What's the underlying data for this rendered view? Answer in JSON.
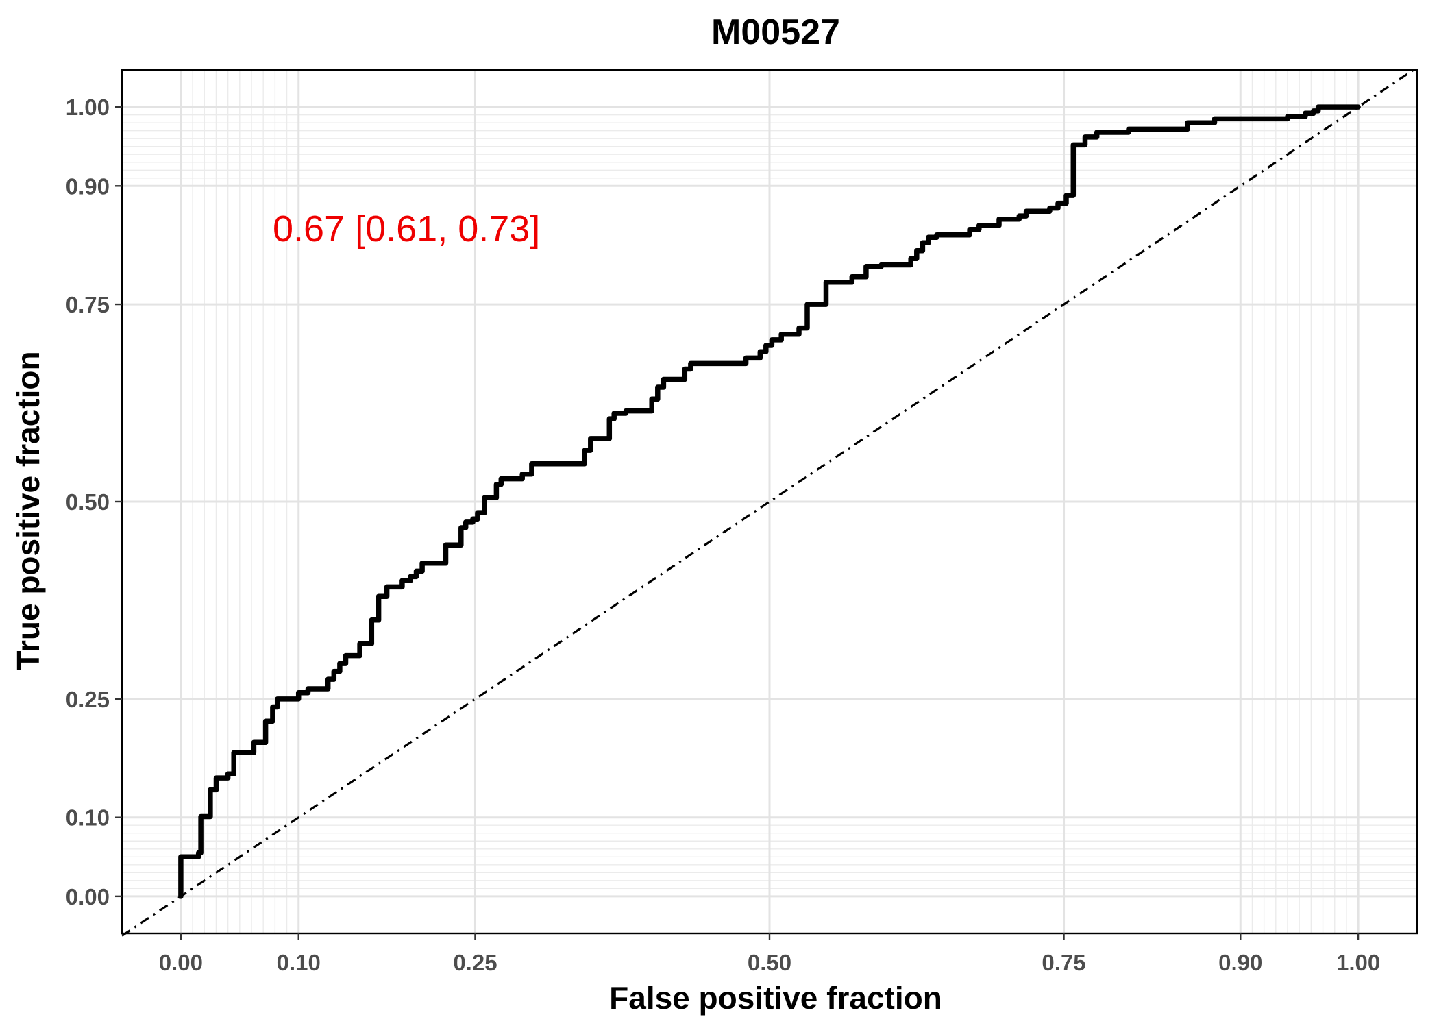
{
  "chart_data": {
    "type": "line",
    "title": "M00527",
    "xlabel": "False positive fraction",
    "ylabel": "True positive fraction",
    "xlim": [
      -0.05,
      1.05
    ],
    "ylim": [
      -0.047,
      1.047
    ],
    "x_ticks": [
      0.0,
      0.1,
      0.25,
      0.5,
      0.75,
      0.9,
      1.0
    ],
    "y_ticks": [
      0.0,
      0.1,
      0.25,
      0.5,
      0.75,
      0.9,
      1.0
    ],
    "x_tick_labels": [
      "0.00",
      "0.10",
      "0.25",
      "0.50",
      "0.75",
      "0.90",
      "1.00"
    ],
    "y_tick_labels": [
      "0.00",
      "0.10",
      "0.25",
      "0.50",
      "0.75",
      "0.90",
      "1.00"
    ],
    "x_minor_grid": [
      0.01,
      0.02,
      0.03,
      0.04,
      0.05,
      0.06,
      0.07,
      0.08,
      0.09,
      0.91,
      0.92,
      0.93,
      0.94,
      0.95,
      0.96,
      0.97,
      0.98,
      0.99
    ],
    "y_minor_grid": [
      0.01,
      0.02,
      0.03,
      0.04,
      0.05,
      0.06,
      0.07,
      0.08,
      0.09,
      0.91,
      0.92,
      0.93,
      0.94,
      0.95,
      0.96,
      0.97,
      0.98,
      0.99
    ],
    "grid": true,
    "annotation": {
      "text": "0.67 [0.61, 0.73]",
      "color": "#ee0000"
    },
    "reference_line": {
      "style": "dash-dot",
      "from": [
        -0.05,
        -0.05
      ],
      "to": [
        1.05,
        1.05
      ]
    },
    "series": [
      {
        "color": "#000000",
        "points": [
          [
            0.0,
            0.0
          ],
          [
            0.0,
            0.05
          ],
          [
            0.015,
            0.05
          ],
          [
            0.015,
            0.055
          ],
          [
            0.017,
            0.055
          ],
          [
            0.017,
            0.101
          ],
          [
            0.025,
            0.101
          ],
          [
            0.025,
            0.135
          ],
          [
            0.03,
            0.135
          ],
          [
            0.03,
            0.15
          ],
          [
            0.04,
            0.15
          ],
          [
            0.04,
            0.155
          ],
          [
            0.045,
            0.155
          ],
          [
            0.045,
            0.182
          ],
          [
            0.062,
            0.182
          ],
          [
            0.062,
            0.195
          ],
          [
            0.072,
            0.195
          ],
          [
            0.072,
            0.222
          ],
          [
            0.078,
            0.222
          ],
          [
            0.078,
            0.24
          ],
          [
            0.082,
            0.24
          ],
          [
            0.082,
            0.25
          ],
          [
            0.1,
            0.25
          ],
          [
            0.1,
            0.258
          ],
          [
            0.108,
            0.258
          ],
          [
            0.108,
            0.263
          ],
          [
            0.125,
            0.263
          ],
          [
            0.125,
            0.275
          ],
          [
            0.13,
            0.275
          ],
          [
            0.13,
            0.285
          ],
          [
            0.135,
            0.285
          ],
          [
            0.135,
            0.295
          ],
          [
            0.14,
            0.295
          ],
          [
            0.14,
            0.305
          ],
          [
            0.152,
            0.305
          ],
          [
            0.152,
            0.32
          ],
          [
            0.162,
            0.32
          ],
          [
            0.162,
            0.35
          ],
          [
            0.168,
            0.35
          ],
          [
            0.168,
            0.38
          ],
          [
            0.175,
            0.38
          ],
          [
            0.175,
            0.392
          ],
          [
            0.188,
            0.392
          ],
          [
            0.188,
            0.4
          ],
          [
            0.195,
            0.4
          ],
          [
            0.195,
            0.405
          ],
          [
            0.2,
            0.405
          ],
          [
            0.2,
            0.412
          ],
          [
            0.205,
            0.412
          ],
          [
            0.205,
            0.422
          ],
          [
            0.225,
            0.422
          ],
          [
            0.225,
            0.445
          ],
          [
            0.238,
            0.445
          ],
          [
            0.238,
            0.467
          ],
          [
            0.242,
            0.467
          ],
          [
            0.242,
            0.474
          ],
          [
            0.248,
            0.474
          ],
          [
            0.248,
            0.478
          ],
          [
            0.252,
            0.478
          ],
          [
            0.252,
            0.486
          ],
          [
            0.258,
            0.486
          ],
          [
            0.258,
            0.505
          ],
          [
            0.268,
            0.505
          ],
          [
            0.268,
            0.522
          ],
          [
            0.272,
            0.522
          ],
          [
            0.272,
            0.529
          ],
          [
            0.29,
            0.529
          ],
          [
            0.29,
            0.535
          ],
          [
            0.298,
            0.535
          ],
          [
            0.298,
            0.548
          ],
          [
            0.343,
            0.548
          ],
          [
            0.343,
            0.565
          ],
          [
            0.348,
            0.565
          ],
          [
            0.348,
            0.58
          ],
          [
            0.364,
            0.58
          ],
          [
            0.364,
            0.605
          ],
          [
            0.368,
            0.605
          ],
          [
            0.368,
            0.612
          ],
          [
            0.378,
            0.612
          ],
          [
            0.378,
            0.615
          ],
          [
            0.4,
            0.615
          ],
          [
            0.4,
            0.63
          ],
          [
            0.405,
            0.63
          ],
          [
            0.405,
            0.645
          ],
          [
            0.41,
            0.645
          ],
          [
            0.41,
            0.655
          ],
          [
            0.428,
            0.655
          ],
          [
            0.428,
            0.668
          ],
          [
            0.433,
            0.668
          ],
          [
            0.433,
            0.675
          ],
          [
            0.48,
            0.675
          ],
          [
            0.48,
            0.682
          ],
          [
            0.492,
            0.682
          ],
          [
            0.492,
            0.69
          ],
          [
            0.497,
            0.69
          ],
          [
            0.497,
            0.698
          ],
          [
            0.502,
            0.698
          ],
          [
            0.502,
            0.705
          ],
          [
            0.51,
            0.705
          ],
          [
            0.51,
            0.712
          ],
          [
            0.525,
            0.712
          ],
          [
            0.525,
            0.72
          ],
          [
            0.532,
            0.72
          ],
          [
            0.532,
            0.75
          ],
          [
            0.548,
            0.75
          ],
          [
            0.548,
            0.778
          ],
          [
            0.57,
            0.778
          ],
          [
            0.57,
            0.785
          ],
          [
            0.582,
            0.785
          ],
          [
            0.582,
            0.798
          ],
          [
            0.595,
            0.798
          ],
          [
            0.595,
            0.8
          ],
          [
            0.62,
            0.8
          ],
          [
            0.62,
            0.808
          ],
          [
            0.625,
            0.808
          ],
          [
            0.625,
            0.818
          ],
          [
            0.63,
            0.818
          ],
          [
            0.63,
            0.828
          ],
          [
            0.635,
            0.828
          ],
          [
            0.635,
            0.835
          ],
          [
            0.642,
            0.835
          ],
          [
            0.642,
            0.838
          ],
          [
            0.67,
            0.838
          ],
          [
            0.67,
            0.845
          ],
          [
            0.678,
            0.845
          ],
          [
            0.678,
            0.85
          ],
          [
            0.695,
            0.85
          ],
          [
            0.695,
            0.858
          ],
          [
            0.712,
            0.858
          ],
          [
            0.712,
            0.862
          ],
          [
            0.718,
            0.862
          ],
          [
            0.718,
            0.868
          ],
          [
            0.738,
            0.868
          ],
          [
            0.738,
            0.872
          ],
          [
            0.745,
            0.872
          ],
          [
            0.745,
            0.878
          ],
          [
            0.752,
            0.878
          ],
          [
            0.752,
            0.888
          ],
          [
            0.758,
            0.888
          ],
          [
            0.758,
            0.952
          ],
          [
            0.768,
            0.952
          ],
          [
            0.768,
            0.962
          ],
          [
            0.778,
            0.962
          ],
          [
            0.778,
            0.968
          ],
          [
            0.805,
            0.968
          ],
          [
            0.805,
            0.972
          ],
          [
            0.855,
            0.972
          ],
          [
            0.855,
            0.98
          ],
          [
            0.878,
            0.98
          ],
          [
            0.878,
            0.985
          ],
          [
            0.94,
            0.985
          ],
          [
            0.94,
            0.988
          ],
          [
            0.955,
            0.988
          ],
          [
            0.955,
            0.992
          ],
          [
            0.962,
            0.992
          ],
          [
            0.962,
            0.995
          ],
          [
            0.966,
            0.995
          ],
          [
            0.966,
            1.0
          ],
          [
            1.0,
            1.0
          ]
        ]
      }
    ]
  }
}
